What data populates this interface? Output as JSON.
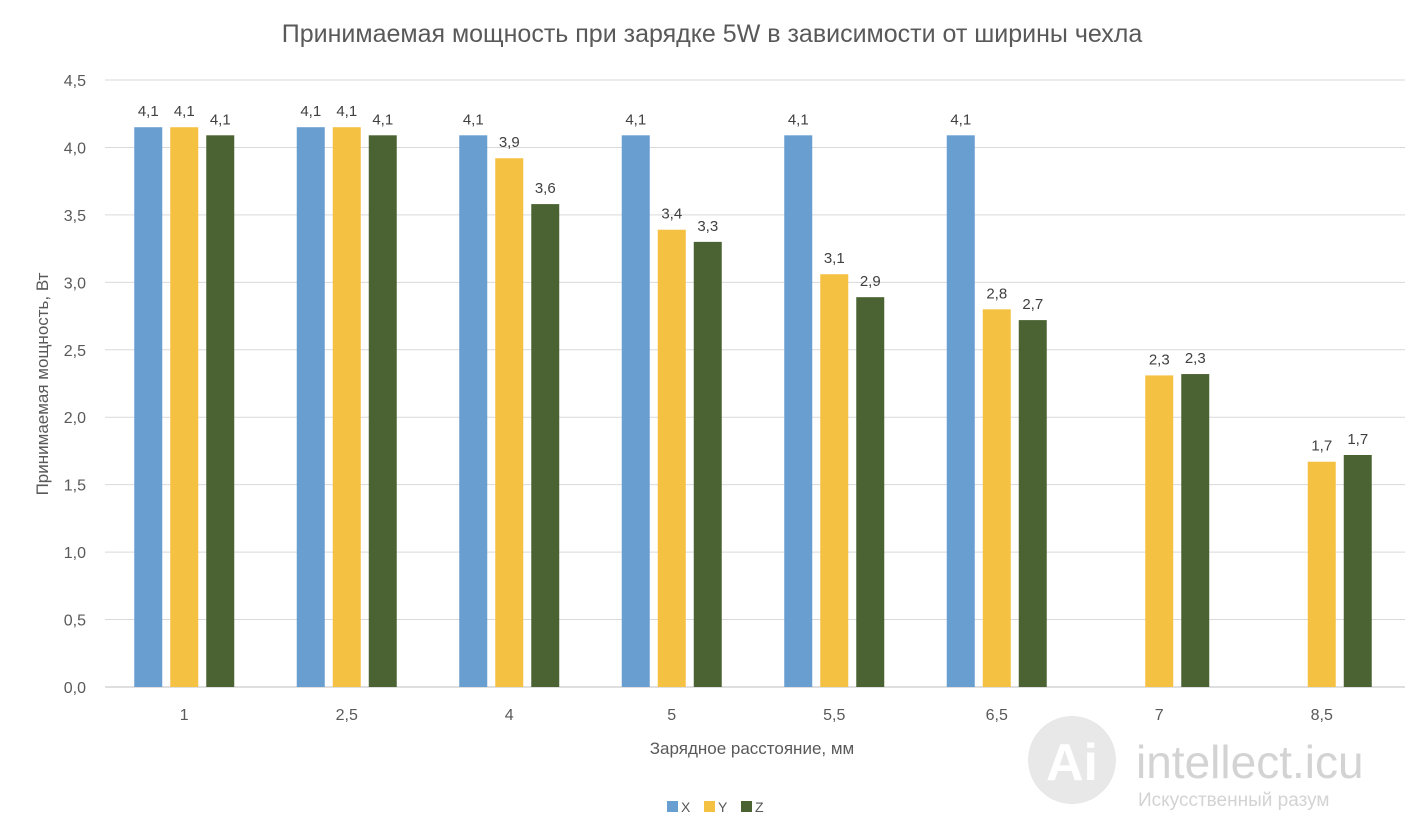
{
  "chart_data": {
    "type": "bar",
    "title": "Принимаемая мощность при зарядке 5W в зависимости от ширины чехла",
    "xlabel": "Зарядное расстояние, мм",
    "ylabel": "Принимаемая мощность, Вт",
    "categories": [
      "1",
      "2,5",
      "4",
      "5",
      "5,5",
      "6,5",
      "7",
      "8,5"
    ],
    "ylim": [
      0,
      4.5
    ],
    "yticks": [
      "0,0",
      "0,5",
      "1,0",
      "1,5",
      "2,0",
      "2,5",
      "3,0",
      "3,5",
      "4,0",
      "4,5"
    ],
    "grid": true,
    "legend_position": "bottom",
    "series": [
      {
        "name": "X",
        "color": "#699ed1",
        "values": [
          4.15,
          4.15,
          4.09,
          4.09,
          4.09,
          4.09,
          null,
          null
        ],
        "labels": [
          "4,1",
          "4,1",
          "4,1",
          "4,1",
          "4,1",
          "4,1",
          "",
          ""
        ]
      },
      {
        "name": "Y",
        "color": "#f5c143",
        "values": [
          4.15,
          4.15,
          3.92,
          3.39,
          3.06,
          2.8,
          2.31,
          1.67
        ],
        "labels": [
          "4,1",
          "4,1",
          "3,9",
          "3,4",
          "3,1",
          "2,8",
          "2,3",
          "1,7"
        ]
      },
      {
        "name": "Z",
        "color": "#4b6333",
        "values": [
          4.09,
          4.09,
          3.58,
          3.3,
          2.89,
          2.72,
          2.32,
          1.72
        ],
        "labels": [
          "4,1",
          "4,1",
          "3,6",
          "3,3",
          "2,9",
          "2,7",
          "2,3",
          "1,7"
        ]
      }
    ]
  },
  "watermark": {
    "brand": "intellect.icu",
    "tagline": "Искусственный разум",
    "logo_text": "Ai"
  }
}
